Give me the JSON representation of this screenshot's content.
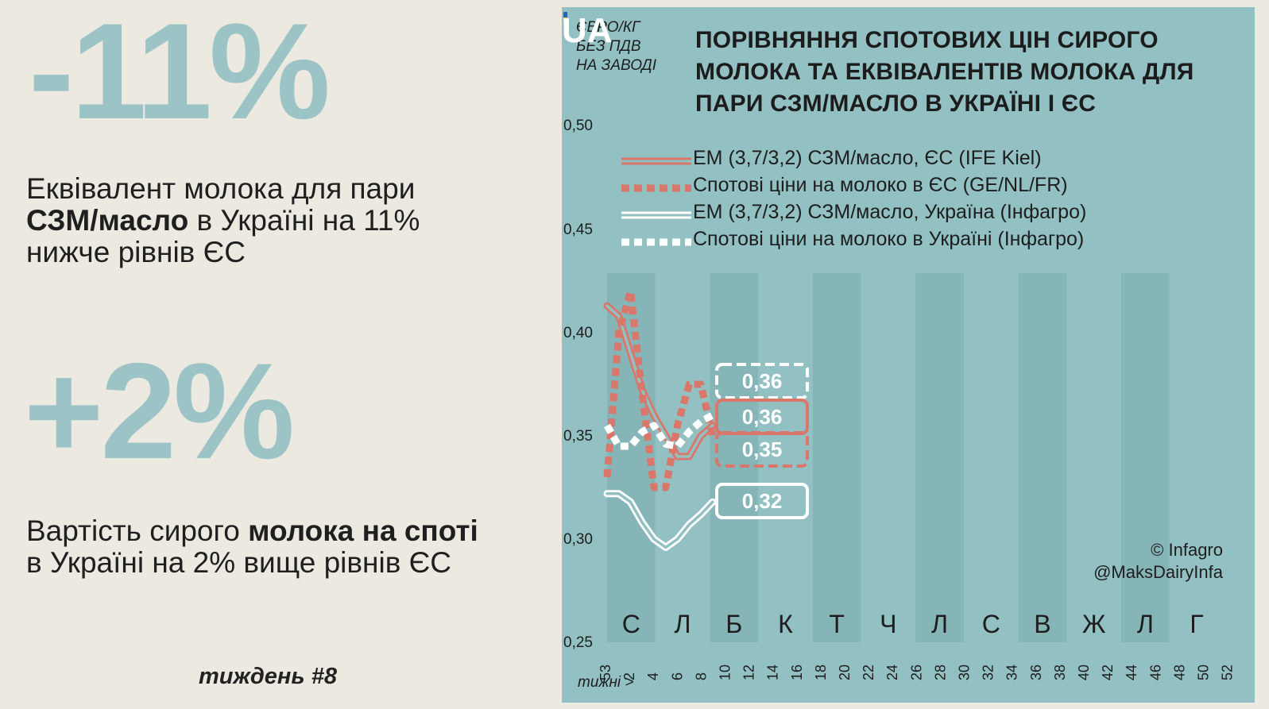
{
  "left": {
    "headline1": "-11%",
    "desc1": {
      "pre": "Еквівалент молока для пари ",
      "bold": "СЗМ/масло",
      "post": " в Україні на 11% нижче рівнів ЄС"
    },
    "headline2": "+2%",
    "desc2": {
      "pre": "Вартість сирого ",
      "bold": "молока на споті",
      "post": " в Україні на 2% вище рівнів ЄС"
    },
    "week": "тиждень #8"
  },
  "chart_panel": {
    "unit_lines": [
      "ЄВРО/КГ",
      "БЕЗ ПДВ",
      "НА ЗАВОДІ"
    ],
    "title": "ПОРІВНЯННЯ СПОТОВИХ ЦІН СИРОГО МОЛОКА ТА ЕКВІВАЛЕНТІВ МОЛОКА ДЛЯ ПАРИ СЗМ/МАСЛО В УКРАЇНІ І ЄС",
    "logo_text": "UA",
    "credit_lines": [
      "© Infagro",
      "@MaksDairyInfa"
    ],
    "weeks_label": "тижні >"
  },
  "colors": {
    "eu": "#d9776a",
    "ua": "#ffffff",
    "panel": "#93c1c3",
    "stripe": "#86b5b8",
    "headline": "#9cc3c6",
    "logo_blue": "#2c5fbf",
    "logo_yellow": "#f2d33a"
  },
  "chart_data": {
    "type": "line",
    "ylim": [
      0.25,
      0.5
    ],
    "yticks": [
      "0,50",
      "0,45",
      "0,40",
      "0,35",
      "0,30",
      "0,25"
    ],
    "ytick_values": [
      0.5,
      0.45,
      0.4,
      0.35,
      0.3,
      0.25
    ],
    "xticks": [
      "53",
      "2",
      "4",
      "6",
      "8",
      "10",
      "12",
      "14",
      "16",
      "18",
      "20",
      "22",
      "24",
      "26",
      "28",
      "30",
      "32",
      "34",
      "36",
      "38",
      "40",
      "42",
      "44",
      "46",
      "48",
      "50",
      "52"
    ],
    "month_letters": [
      "С",
      "Л",
      "Б",
      "К",
      "Т",
      "Ч",
      "Л",
      "С",
      "В",
      "Ж",
      "Л",
      "Г"
    ],
    "series": [
      {
        "name": "ЕМ (3,7/3,2) СЗМ/масло, ЄС (IFE Kiel)",
        "style": "double",
        "color": "eu",
        "x": [
          0,
          1,
          2,
          3,
          4,
          5,
          6,
          7,
          8,
          9
        ],
        "y": [
          0.413,
          0.408,
          0.39,
          0.372,
          0.36,
          0.35,
          0.34,
          0.34,
          0.35,
          0.355
        ]
      },
      {
        "name": "Спотові ціни на молоко в ЄС (GE/NL/FR)",
        "style": "dotted",
        "color": "eu",
        "x": [
          0,
          1,
          2,
          3,
          4,
          5,
          6,
          7,
          8,
          9
        ],
        "y": [
          0.33,
          0.4,
          0.42,
          0.37,
          0.325,
          0.325,
          0.355,
          0.375,
          0.375,
          0.35
        ]
      },
      {
        "name": "ЕМ (3,7/3,2) СЗМ/масло, Україна (Інфагро)",
        "style": "double",
        "color": "ua",
        "x": [
          0,
          1,
          2,
          3,
          4,
          5,
          6,
          7,
          8,
          9
        ],
        "y": [
          0.322,
          0.322,
          0.318,
          0.308,
          0.3,
          0.296,
          0.3,
          0.307,
          0.312,
          0.318
        ]
      },
      {
        "name": "Спотові ціни на молоко в Україні (Інфагро)",
        "style": "dotted",
        "color": "ua",
        "x": [
          0,
          1,
          2,
          3,
          4,
          5,
          6,
          7,
          8,
          9
        ],
        "y": [
          0.355,
          0.345,
          0.345,
          0.352,
          0.355,
          0.346,
          0.345,
          0.352,
          0.357,
          0.36
        ]
      }
    ],
    "end_labels": [
      {
        "text": "0,36",
        "style": "dashed",
        "color": "ua"
      },
      {
        "text": "0,36",
        "style": "solid",
        "color": "eu"
      },
      {
        "text": "0,35",
        "style": "dashed",
        "color": "eu"
      },
      {
        "text": "0,32",
        "style": "solid",
        "color": "ua"
      }
    ]
  }
}
